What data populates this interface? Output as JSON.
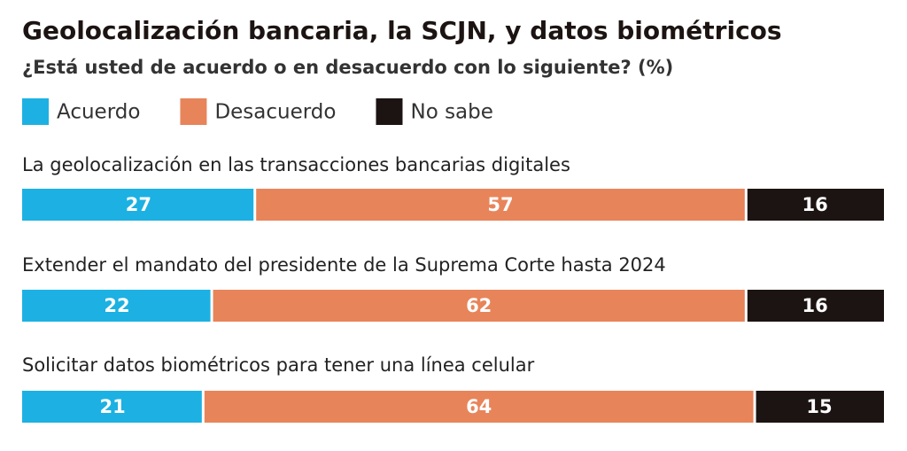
{
  "chart_data": {
    "type": "bar",
    "orientation": "horizontal",
    "stacked": true,
    "title": "Geolocalización bancaria, la SCJN, y datos biométricos",
    "subtitle": "¿Está usted de acuerdo o en desacuerdo con lo siguiente?  (%)",
    "categories": [
      "La geolocalización en las transacciones bancarias digitales",
      "Extender el mandato del presidente de la Suprema Corte hasta 2024",
      "Solicitar datos biométricos para tener una línea celular"
    ],
    "series": [
      {
        "name": "Acuerdo",
        "color": "#1cb1e2",
        "values": [
          27,
          22,
          21
        ]
      },
      {
        "name": "Desacuerdo",
        "color": "#e8845a",
        "values": [
          57,
          62,
          64
        ]
      },
      {
        "name": "No sabe",
        "color": "#1c1412",
        "values": [
          16,
          16,
          15
        ]
      }
    ]
  }
}
